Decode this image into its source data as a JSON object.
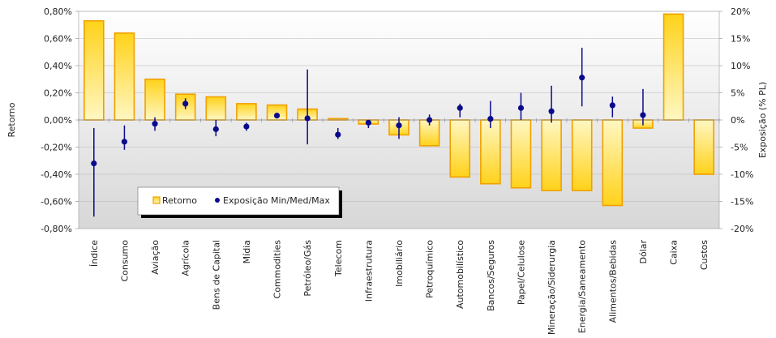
{
  "chart_data": {
    "type": "bar",
    "title": "",
    "ylabel_left": "Retorno",
    "ylabel_right": "Exposição (% PL)",
    "ylim_left": [
      -0.8,
      0.8
    ],
    "ylim_right": [
      -20,
      20
    ],
    "yticks_left": [
      "0,80%",
      "0,60%",
      "0,40%",
      "0,20%",
      "0,00%",
      "-0,20%",
      "-0,40%",
      "-0,60%",
      "-0,80%"
    ],
    "yticks_right": [
      "20%",
      "15%",
      "10%",
      "5%",
      "0%",
      "-5%",
      "-10%",
      "-15%",
      "-20%"
    ],
    "categories": [
      "Índice",
      "Consumo",
      "Aviação",
      "Agrícola",
      "Bens de Capital",
      "Mídia",
      "Commodities",
      "Petróleo/Gás",
      "Telecom",
      "Infraestrutura",
      "Imobiliário",
      "Petroquímico",
      "Automobilístico",
      "Bancos/Seguros",
      "Papel/Celulose",
      "Mineração/Siderurgia",
      "Energia/Saneamento",
      "Alimentos/Bebidas",
      "Dólar",
      "Caixa",
      "Custos"
    ],
    "series": [
      {
        "name": "Retorno",
        "type": "bar",
        "axis": "left",
        "values": [
          0.73,
          0.64,
          0.3,
          0.19,
          0.17,
          0.12,
          0.11,
          0.08,
          0.01,
          -0.03,
          -0.11,
          -0.19,
          -0.42,
          -0.47,
          -0.5,
          -0.52,
          -0.52,
          -0.63,
          -0.06,
          0.78,
          -0.4
        ]
      },
      {
        "name": "Exposição Min/Med/Max",
        "type": "errorbar",
        "axis": "right",
        "min": [
          -17.8,
          -5.5,
          -2.0,
          2.0,
          -3.0,
          -2.0,
          0.5,
          -4.5,
          -3.5,
          -1.5,
          -3.5,
          -1.0,
          0.5,
          -1.5,
          0.0,
          -0.5,
          2.5,
          0.5,
          -1.0,
          null,
          null
        ],
        "med": [
          -8.0,
          -4.0,
          -0.7,
          3.0,
          -1.7,
          -1.2,
          0.8,
          0.3,
          -2.7,
          -0.5,
          -1.0,
          0.0,
          2.2,
          0.2,
          2.2,
          1.6,
          7.8,
          2.7,
          0.9,
          null,
          null
        ],
        "max": [
          -1.5,
          -1.0,
          0.5,
          4.0,
          0.0,
          -0.5,
          1.0,
          9.3,
          -1.5,
          0.0,
          0.5,
          1.0,
          3.0,
          3.5,
          5.0,
          6.3,
          13.3,
          4.3,
          5.7,
          null,
          null
        ]
      }
    ],
    "legend": {
      "position": "bottom-left",
      "items": [
        "Retorno",
        "Exposição Min/Med/Max"
      ]
    },
    "grid": true,
    "colors": {
      "bar_fill_top": "#ffd21a",
      "bar_fill_bottom": "#fff7c2",
      "bar_stroke": "#f0a000",
      "marker": "#0a0a8c",
      "grid": "#b5b5b5"
    }
  }
}
